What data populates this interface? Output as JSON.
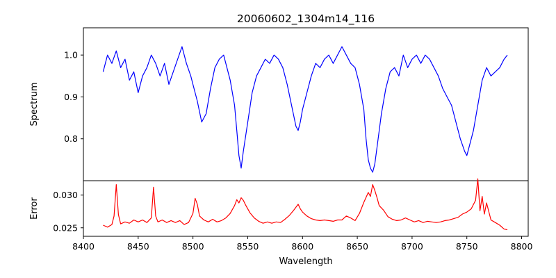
{
  "chart_data": {
    "title": "20060602_1304m14_116",
    "type": "line",
    "shared_x": {
      "label": "Wavelength",
      "range": [
        8400,
        8806
      ],
      "ticks": [
        8400,
        8450,
        8500,
        8550,
        8600,
        8650,
        8700,
        8750,
        8800
      ],
      "tick_labels": [
        "8400",
        "8450",
        "8500",
        "8550",
        "8600",
        "8650",
        "8700",
        "8750",
        "8800"
      ]
    },
    "panels": [
      {
        "name": "spectrum",
        "ylabel": "Spectrum",
        "ylim": [
          0.7,
          1.065
        ],
        "yticks": [
          0.8,
          0.9,
          1.0
        ],
        "ytick_labels": [
          "0.8",
          "0.9",
          "1.0"
        ],
        "series": [
          {
            "name": "Spectrum",
            "color": "#0000ff",
            "x": [
              8418,
              8422,
              8426,
              8430,
              8434,
              8438,
              8442,
              8446,
              8450,
              8454,
              8458,
              8462,
              8466,
              8470,
              8474,
              8478,
              8482,
              8486,
              8490,
              8494,
              8498,
              8500,
              8504,
              8508,
              8512,
              8516,
              8520,
              8524,
              8528,
              8530,
              8534,
              8538,
              8540,
              8542,
              8544,
              8546,
              8550,
              8554,
              8558,
              8562,
              8566,
              8570,
              8574,
              8578,
              8582,
              8586,
              8590,
              8594,
              8596,
              8598,
              8600,
              8604,
              8608,
              8612,
              8616,
              8620,
              8624,
              8628,
              8632,
              8636,
              8640,
              8644,
              8648,
              8652,
              8656,
              8658,
              8660,
              8662,
              8664,
              8666,
              8668,
              8672,
              8676,
              8680,
              8684,
              8688,
              8692,
              8696,
              8700,
              8704,
              8708,
              8712,
              8716,
              8720,
              8724,
              8728,
              8732,
              8736,
              8740,
              8744,
              8748,
              8750,
              8752,
              8756,
              8760,
              8764,
              8768,
              8772,
              8776,
              8780,
              8784,
              8787
            ],
            "y": [
              0.96,
              1.0,
              0.98,
              1.01,
              0.97,
              0.99,
              0.94,
              0.96,
              0.91,
              0.95,
              0.97,
              1.0,
              0.98,
              0.95,
              0.98,
              0.93,
              0.96,
              0.99,
              1.02,
              0.98,
              0.95,
              0.93,
              0.89,
              0.84,
              0.86,
              0.92,
              0.97,
              0.99,
              1.0,
              0.98,
              0.94,
              0.88,
              0.82,
              0.76,
              0.73,
              0.77,
              0.84,
              0.91,
              0.95,
              0.97,
              0.99,
              0.98,
              1.0,
              0.99,
              0.97,
              0.93,
              0.88,
              0.83,
              0.82,
              0.84,
              0.87,
              0.91,
              0.95,
              0.98,
              0.97,
              0.99,
              1.0,
              0.98,
              1.0,
              1.02,
              1.0,
              0.98,
              0.97,
              0.93,
              0.87,
              0.8,
              0.75,
              0.73,
              0.72,
              0.74,
              0.78,
              0.86,
              0.92,
              0.96,
              0.97,
              0.95,
              1.0,
              0.97,
              0.99,
              1.0,
              0.98,
              1.0,
              0.99,
              0.97,
              0.95,
              0.92,
              0.9,
              0.88,
              0.84,
              0.8,
              0.77,
              0.76,
              0.78,
              0.82,
              0.88,
              0.94,
              0.97,
              0.95,
              0.96,
              0.97,
              0.99,
              1.0
            ]
          }
        ]
      },
      {
        "name": "error",
        "ylabel": "Error",
        "ylim": [
          0.0237,
          0.0322
        ],
        "yticks": [
          0.025,
          0.03
        ],
        "ytick_labels": [
          "0.025",
          "0.030"
        ],
        "series": [
          {
            "name": "Error",
            "color": "#ff0000",
            "x": [
              8418,
              8422,
              8426,
              8428,
              8430,
              8432,
              8434,
              8438,
              8442,
              8446,
              8450,
              8454,
              8458,
              8462,
              8464,
              8466,
              8468,
              8472,
              8476,
              8480,
              8484,
              8488,
              8492,
              8496,
              8500,
              8502,
              8504,
              8506,
              8510,
              8514,
              8518,
              8522,
              8526,
              8530,
              8534,
              8538,
              8540,
              8542,
              8544,
              8546,
              8548,
              8552,
              8556,
              8560,
              8564,
              8568,
              8572,
              8576,
              8580,
              8584,
              8588,
              8592,
              8596,
              8598,
              8600,
              8604,
              8608,
              8612,
              8616,
              8620,
              8624,
              8628,
              8632,
              8636,
              8640,
              8644,
              8648,
              8652,
              8656,
              8660,
              8662,
              8664,
              8666,
              8668,
              8670,
              8674,
              8678,
              8682,
              8686,
              8690,
              8694,
              8698,
              8702,
              8706,
              8710,
              8714,
              8718,
              8722,
              8726,
              8730,
              8734,
              8738,
              8742,
              8746,
              8750,
              8754,
              8758,
              8760,
              8762,
              8764,
              8766,
              8768,
              8772,
              8776,
              8780,
              8784,
              8787
            ],
            "y": [
              0.0254,
              0.0251,
              0.0255,
              0.0268,
              0.0316,
              0.027,
              0.0256,
              0.0259,
              0.0257,
              0.0262,
              0.0259,
              0.0262,
              0.0258,
              0.0265,
              0.0312,
              0.0268,
              0.0259,
              0.0262,
              0.0258,
              0.0261,
              0.0258,
              0.0261,
              0.0255,
              0.0258,
              0.0272,
              0.0295,
              0.0286,
              0.0268,
              0.0262,
              0.0259,
              0.0263,
              0.0259,
              0.0261,
              0.0265,
              0.0272,
              0.0284,
              0.0293,
              0.0288,
              0.0296,
              0.0292,
              0.0285,
              0.0273,
              0.0265,
              0.026,
              0.0257,
              0.0259,
              0.0257,
              0.0259,
              0.0258,
              0.0263,
              0.0269,
              0.0277,
              0.0286,
              0.0279,
              0.0274,
              0.0268,
              0.0264,
              0.0262,
              0.0261,
              0.0262,
              0.0261,
              0.026,
              0.0262,
              0.0262,
              0.0268,
              0.0265,
              0.0261,
              0.0272,
              0.0289,
              0.0304,
              0.0298,
              0.0316,
              0.0307,
              0.0296,
              0.0284,
              0.0277,
              0.0267,
              0.0263,
              0.0261,
              0.0262,
              0.0265,
              0.0262,
              0.0259,
              0.0261,
              0.0258,
              0.026,
              0.0259,
              0.0258,
              0.0259,
              0.0261,
              0.0262,
              0.0264,
              0.0266,
              0.0271,
              0.0274,
              0.0279,
              0.0292,
              0.0325,
              0.0276,
              0.0298,
              0.0271,
              0.0288,
              0.0262,
              0.0258,
              0.0254,
              0.0248,
              0.0247
            ]
          }
        ]
      }
    ]
  }
}
